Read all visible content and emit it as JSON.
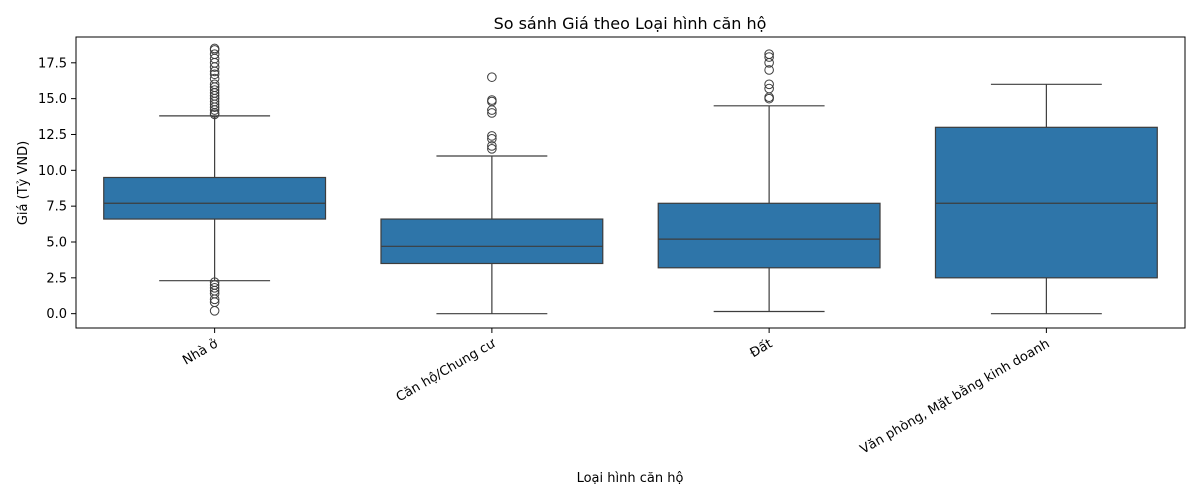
{
  "chart_data": {
    "type": "box",
    "title": "So sánh Giá theo Loại hình căn hộ",
    "xlabel": "Loại hình căn hộ",
    "ylabel": "Giá (Tỷ VND)",
    "ylim": [
      -1.0,
      19.3
    ],
    "yticks": [
      0.0,
      2.5,
      5.0,
      7.5,
      10.0,
      12.5,
      15.0,
      17.5
    ],
    "ytick_labels": [
      "0.0",
      "2.5",
      "5.0",
      "7.5",
      "10.0",
      "12.5",
      "15.0",
      "17.5"
    ],
    "grid": false,
    "box_color": "#2e75a9",
    "line_color": "#3d3d3d",
    "categories": [
      "Nhà ở",
      "Căn hộ/Chung cư",
      "Đất",
      "Văn phòng, Mặt bằng kinh doanh"
    ],
    "boxes": [
      {
        "whisker_low": 2.3,
        "q1": 6.6,
        "median": 7.7,
        "q3": 9.5,
        "whisker_high": 13.8,
        "outliers": [
          0.2,
          0.8,
          1.0,
          1.4,
          1.6,
          1.8,
          2.0,
          2.2,
          13.9,
          14.0,
          14.2,
          14.4,
          14.6,
          14.8,
          15.0,
          15.2,
          15.4,
          15.6,
          15.8,
          16.0,
          16.4,
          16.7,
          16.9,
          17.2,
          17.5,
          17.8,
          18.1,
          18.4,
          18.5
        ]
      },
      {
        "whisker_low": 0.0,
        "q1": 3.5,
        "median": 4.7,
        "q3": 6.6,
        "whisker_high": 11.0,
        "outliers": [
          11.5,
          11.7,
          12.2,
          12.4,
          14.0,
          14.2,
          14.8,
          14.9,
          16.5
        ]
      },
      {
        "whisker_low": 0.15,
        "q1": 3.2,
        "median": 5.2,
        "q3": 7.7,
        "whisker_high": 14.5,
        "outliers": [
          15.0,
          15.1,
          15.7,
          16.0,
          17.0,
          17.5,
          17.9,
          18.1
        ]
      },
      {
        "whisker_low": 0.0,
        "q1": 2.5,
        "median": 7.7,
        "q3": 13.0,
        "whisker_high": 16.0,
        "outliers": []
      }
    ]
  }
}
